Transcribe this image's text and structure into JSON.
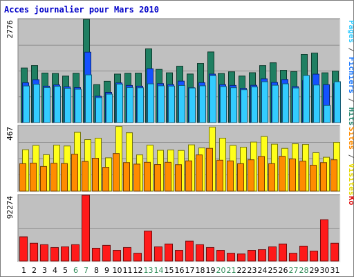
{
  "chart_data": {
    "type": "bar",
    "title": "Acces journalier pour Mars 2010",
    "categories": [
      "1",
      "2",
      "3",
      "4",
      "5",
      "6",
      "7",
      "8",
      "9",
      "10",
      "11",
      "12",
      "13",
      "14",
      "15",
      "16",
      "17",
      "18",
      "19",
      "20",
      "21",
      "22",
      "23",
      "24",
      "25",
      "26",
      "27",
      "28",
      "29",
      "30",
      "31"
    ],
    "weekend_days": [
      "6",
      "7",
      "13",
      "14",
      "20",
      "21",
      "27",
      "28"
    ],
    "panels": [
      {
        "id": "traffic",
        "max_label": "2776",
        "ylim": [
          0,
          2776
        ],
        "side_label_parts": [
          {
            "text": "Pages",
            "color": "#33ccff"
          },
          {
            "text": " / ",
            "color": "#555555"
          },
          {
            "text": "Fichiers",
            "color": "#1f7bff"
          },
          {
            "text": " / ",
            "color": "#555555"
          },
          {
            "text": "Hits",
            "color": "#2e8b74"
          }
        ],
        "series": [
          {
            "name": "Hits",
            "color": "#1f7f62",
            "values": [
              1469,
              1535,
              1333,
              1322,
              1251,
              1327,
              2776,
              1022,
              1111,
              1305,
              1327,
              1331,
              1983,
              1431,
              1339,
              1517,
              1307,
              1592,
              1901,
              1321,
              1366,
              1252,
              1342,
              1534,
              1609,
              1406,
              1372,
              1835,
              1869,
              1339,
              1385
            ]
          },
          {
            "name": "Fichiers",
            "color": "#1452ff",
            "values": [
              1070,
              1154,
              980,
              1013,
              962,
              941,
              1895,
              709,
              810,
              1067,
              999,
              980,
              1449,
              1048,
              1023,
              1115,
              937,
              1074,
              1304,
              1020,
              999,
              918,
              1003,
              1176,
              1080,
              1159,
              966,
              1132,
              1303,
              1020,
              1049
            ]
          },
          {
            "name": "Pages",
            "color": "#33ccff",
            "values": [
              985,
              1030,
              942,
              975,
              922,
              895,
              1283,
              672,
              764,
              1034,
              942,
              936,
              1042,
              989,
              981,
              998,
              930,
              989,
              1262,
              969,
              938,
              882,
              958,
              1099,
              1004,
              1043,
              931,
              1267,
              1010,
              461,
              1100
            ]
          }
        ]
      },
      {
        "id": "visits",
        "max_label": "467",
        "ylim": [
          0,
          467
        ],
        "side_label_parts": [
          {
            "text": "Sites",
            "color": "#ff8c00"
          },
          {
            "text": " / ",
            "color": "#555555"
          },
          {
            "text": "Visites",
            "color": "#e6d800"
          }
        ],
        "series": [
          {
            "name": "Visites",
            "color": "#ffff1a",
            "values": [
              297,
              328,
              261,
              330,
              324,
              422,
              370,
              380,
              239,
              464,
              419,
              260,
              330,
              293,
              295,
              292,
              332,
              310,
              459,
              380,
              328,
              315,
              352,
              392,
              337,
              307,
              340,
              335,
              276,
              243,
              350
            ]
          },
          {
            "name": "Sites",
            "color": "#ff8c00",
            "values": [
              197,
              201,
              177,
              200,
              198,
              265,
              213,
              236,
              171,
              270,
              205,
              194,
              207,
              191,
              207,
              190,
              217,
              260,
              307,
              222,
              217,
              197,
              225,
              249,
              197,
              250,
              231,
              215,
              186,
              205,
              225
            ]
          }
        ]
      },
      {
        "id": "ko",
        "max_label": "92274",
        "ylim": [
          0,
          92274
        ],
        "side_label_parts": [
          {
            "text": "Ko",
            "color": "#e00000"
          }
        ],
        "series": [
          {
            "name": "Ko",
            "color": "#ff1a1a",
            "values": [
              34000,
              25000,
              23000,
              19000,
              20000,
              23000,
              92274,
              18000,
              22000,
              15000,
              19000,
              11000,
              42000,
              20000,
              24000,
              15000,
              28000,
              23000,
              19000,
              15000,
              11000,
              10000,
              15000,
              16000,
              20000,
              24000,
              11000,
              21000,
              14000,
              58000,
              25000
            ]
          }
        ]
      }
    ]
  },
  "colors": {
    "plot_bg": "#c0c0c0",
    "title": "#0000c8",
    "axis_text": "#000000",
    "weekend_text": "#2e8b57",
    "gridline": "#8c8c8c"
  }
}
